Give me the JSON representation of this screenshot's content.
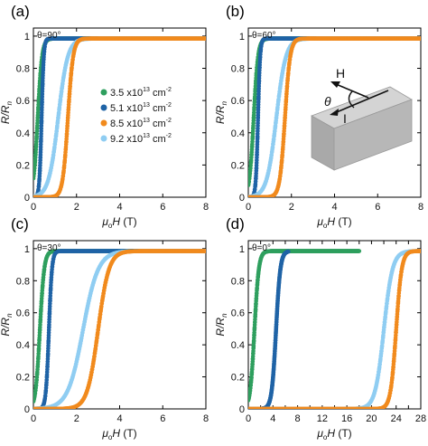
{
  "colors": {
    "green": "#2e9f5e",
    "dark_blue": "#1f63a6",
    "orange": "#f18a1d",
    "light_blue": "#8fcdf2",
    "inset_block": "#b7b7b7"
  },
  "legend": {
    "placement": "left, panel (a)",
    "entries": [
      {
        "prefix": "3.5 x10",
        "exp": "13",
        "unit": " cm",
        "uexp": "-2"
      },
      {
        "prefix": "5.1 x10",
        "exp": "13",
        "unit": " cm",
        "uexp": "-2"
      },
      {
        "prefix": "8.5 x10",
        "exp": "13",
        "unit": " cm",
        "uexp": "-2"
      },
      {
        "prefix": "9.2 x10",
        "exp": "13",
        "unit": " cm",
        "uexp": "-2"
      }
    ]
  },
  "inset": {
    "field_label": "H",
    "angle_label": "θ",
    "current_label": "I"
  },
  "chart_data": [
    {
      "type": "scatter",
      "panel_label": "(a)",
      "angle_text": "θ=90°",
      "xlabel": {
        "main": "μ",
        "sub": "o",
        "rest": "H (T)"
      },
      "ylabel": {
        "main": "R/R",
        "sub": "n"
      },
      "xlim": [
        0,
        8
      ],
      "ylim": [
        0,
        1.05
      ],
      "xticks": [
        0,
        2,
        4,
        6,
        8
      ],
      "yticks": [
        0,
        0.2,
        0.4,
        0.6,
        0.8,
        1
      ],
      "ytick_labels": [
        "0",
        "0.2",
        "0.4",
        "0.6",
        "0.8",
        "1"
      ],
      "show_yticklabels": true,
      "series": [
        {
          "color_key": "green",
          "hc": 0.2,
          "w": 0.1
        },
        {
          "color_key": "dark_blue",
          "hc": 0.38,
          "w": 0.05
        },
        {
          "color_key": "light_blue",
          "hc": 1.15,
          "w": 0.22
        },
        {
          "color_key": "orange",
          "hc": 1.6,
          "w": 0.12
        }
      ]
    },
    {
      "type": "scatter",
      "panel_label": "(b)",
      "angle_text": "θ=60°",
      "xlabel": {
        "main": "μ",
        "sub": "o",
        "rest": "H (T)"
      },
      "ylabel": {
        "main": "R/R",
        "sub": "n"
      },
      "xlim": [
        0,
        8
      ],
      "ylim": [
        0,
        1.05
      ],
      "xticks": [
        0,
        2,
        4,
        6,
        8
      ],
      "yticks": [
        0,
        0.2,
        0.4,
        0.6,
        0.8,
        1
      ],
      "ytick_labels": [
        "0",
        "0.2",
        "0.4",
        "0.6",
        "0.8",
        "1"
      ],
      "show_yticklabels": true,
      "series": [
        {
          "color_key": "green",
          "hc": 0.25,
          "w": 0.1
        },
        {
          "color_key": "dark_blue",
          "hc": 0.45,
          "w": 0.05
        },
        {
          "color_key": "light_blue",
          "hc": 1.3,
          "w": 0.22
        },
        {
          "color_key": "orange",
          "hc": 1.7,
          "w": 0.12
        }
      ]
    },
    {
      "type": "scatter",
      "panel_label": "(c)",
      "angle_text": "θ=30°",
      "xlabel": {
        "main": "μ",
        "sub": "o",
        "rest": "H (T)"
      },
      "ylabel": {
        "main": "R/R",
        "sub": "n"
      },
      "xlim": [
        0,
        8
      ],
      "ylim": [
        0,
        1.05
      ],
      "xticks": [
        0,
        2,
        4,
        6,
        8
      ],
      "yticks": [
        0,
        0.2,
        0.4,
        0.6,
        0.8,
        1
      ],
      "ytick_labels": [
        "0",
        "0.2",
        "0.4",
        "0.6",
        "0.8",
        "1"
      ],
      "show_yticklabels": true,
      "series": [
        {
          "color_key": "green",
          "hc": 0.3,
          "w": 0.1
        },
        {
          "color_key": "dark_blue",
          "hc": 0.72,
          "w": 0.07
        },
        {
          "color_key": "light_blue",
          "hc": 2.3,
          "w": 0.35
        },
        {
          "color_key": "orange",
          "hc": 3.0,
          "w": 0.25
        }
      ]
    },
    {
      "type": "scatter",
      "panel_label": "(d)",
      "angle_text": "θ=0°",
      "xlabel": {
        "main": "μ",
        "sub": "o",
        "rest": "H (T)"
      },
      "ylabel": {
        "main": "R/R",
        "sub": "n"
      },
      "xlim": [
        0,
        28
      ],
      "ylim": [
        0,
        1.05
      ],
      "xticks": [
        0,
        2,
        4,
        6,
        8,
        10,
        12,
        14,
        16,
        18,
        20,
        22,
        24,
        26,
        28
      ],
      "yticks": [
        0,
        0.2,
        0.4,
        0.6,
        0.8,
        1
      ],
      "ytick_labels": [
        "0",
        "0.2",
        "0.4",
        "0.6",
        "0.8",
        "1"
      ],
      "show_yticklabels": true,
      "series": [
        {
          "color_key": "green",
          "hc": 1.0,
          "w": 0.35,
          "xmax": 18
        },
        {
          "color_key": "dark_blue",
          "hc": 4.5,
          "w": 0.35,
          "xmax": 6.5
        },
        {
          "color_key": "light_blue",
          "hc": 22.0,
          "w": 0.7
        },
        {
          "color_key": "orange",
          "hc": 24.0,
          "w": 0.45
        }
      ]
    }
  ]
}
